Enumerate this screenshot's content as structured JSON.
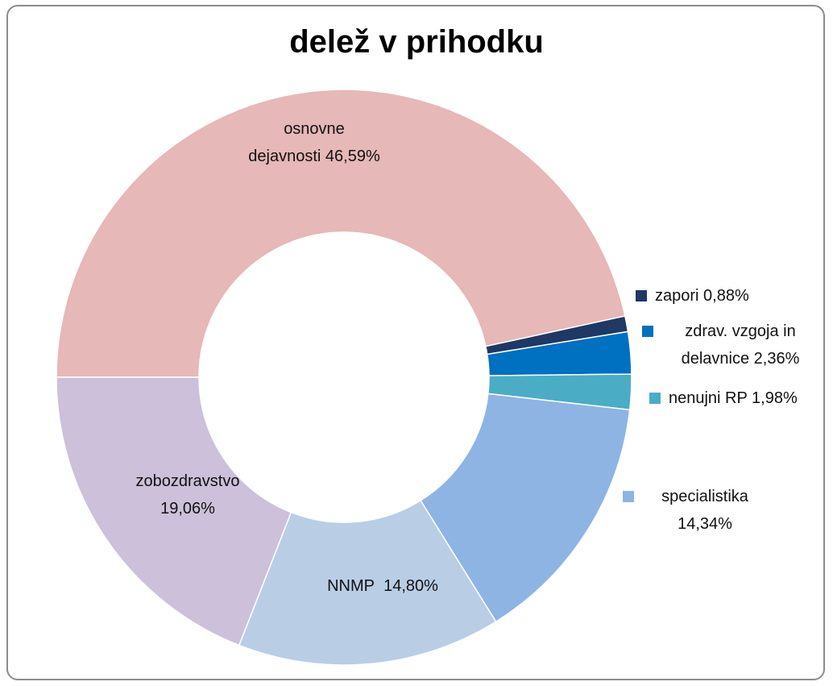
{
  "chart_data": {
    "type": "donut",
    "title": "delež v prihodku",
    "categories": [
      "osnovne dejavnosti",
      "zapori",
      "zdrav. vzgoja in delavnice",
      "nenujni RP",
      "specialistika",
      "NNMP",
      "zobozdravstvo"
    ],
    "values": [
      46.59,
      0.88,
      2.36,
      1.98,
      14.34,
      14.8,
      19.06
    ],
    "value_labels": [
      "46,59%",
      "0,88%",
      "2,36%",
      "1,98%",
      "14,34%",
      "14,80%",
      "19,06%"
    ],
    "colors": [
      "#e6b8b7",
      "#1f3864",
      "#0070c0",
      "#4bacc6",
      "#8eb4e3",
      "#b9cde5",
      "#ccc0da"
    ]
  }
}
